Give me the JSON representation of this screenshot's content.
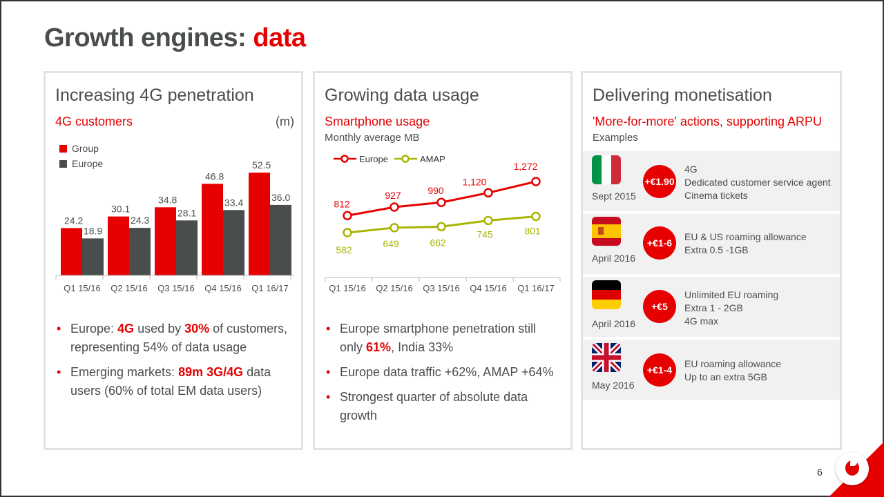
{
  "title": {
    "main": "Growth engines: ",
    "accent": "data"
  },
  "panel1": {
    "title": "Increasing 4G penetration",
    "subtitle": "4G customers",
    "unit": "(m)",
    "bullets": [
      {
        "a": "Europe: ",
        "b": "4G",
        "c": " used by ",
        "d": "30%",
        "e": " of customers, representing 54% of data usage"
      },
      {
        "a": "Emerging markets: ",
        "b": "89m 3G/4G",
        "c": " data users (60% of total EM data users)"
      }
    ]
  },
  "panel2": {
    "title": "Growing data usage",
    "subtitle": "Smartphone usage",
    "note": "Monthly average MB",
    "bullets": [
      {
        "a": "Europe smartphone penetration still only ",
        "b": "61%",
        "c": ", India 33%"
      },
      {
        "a": "Europe data traffic +62%, AMAP +64%"
      },
      {
        "a": "Strongest quarter of absolute data growth"
      }
    ]
  },
  "panel3": {
    "title": "Delivering monetisation",
    "subtitle": "'More-for-more' actions, supporting ARPU",
    "note": "Examples",
    "rows": [
      {
        "flag": "italy-flag-icon",
        "date": "Sept 2015",
        "badge": "+€1.90",
        "lines": [
          "4G",
          "Dedicated customer service agent",
          "Cinema tickets"
        ]
      },
      {
        "flag": "spain-flag-icon",
        "date": "April 2016",
        "badge": "+€1-6",
        "lines": [
          "EU & US roaming allowance",
          "Extra 0.5 -1GB"
        ]
      },
      {
        "flag": "germany-flag-icon",
        "date": "April 2016",
        "badge": "+€5",
        "lines": [
          "Unlimited EU roaming",
          "Extra 1 - 2GB",
          "4G max"
        ]
      },
      {
        "flag": "uk-flag-icon",
        "date": "May 2016",
        "badge": "+€1-4",
        "lines": [
          "EU roaming allowance",
          "Up to an extra 5GB"
        ]
      }
    ]
  },
  "page_number": "6",
  "colors": {
    "red": "#e60000",
    "grey": "#4a4d4e",
    "green": "#a8b400"
  },
  "chart_data": [
    {
      "type": "bar",
      "title": "4G customers",
      "ylabel": "(m)",
      "categories": [
        "Q1 15/16",
        "Q2 15/16",
        "Q3 15/16",
        "Q4 15/16",
        "Q1 16/17"
      ],
      "series": [
        {
          "name": "Group",
          "values": [
            24.2,
            30.1,
            34.8,
            46.8,
            52.5
          ],
          "labels": [
            "24.2",
            "30.1",
            "34.8",
            "46.8",
            "52.5"
          ],
          "color": "#e60000"
        },
        {
          "name": "Europe",
          "values": [
            18.9,
            24.3,
            28.1,
            33.4,
            36.0
          ],
          "labels": [
            "18.9",
            "24.3",
            "28.1",
            "33.4",
            "36.0"
          ],
          "color": "#4a4d4e"
        }
      ],
      "ylim": [
        0,
        55
      ],
      "legend": "top-left"
    },
    {
      "type": "line",
      "title": "Smartphone usage",
      "ylabel": "Monthly average MB",
      "categories": [
        "Q1 15/16",
        "Q2 15/16",
        "Q3 15/16",
        "Q4 15/16",
        "Q1 16/17"
      ],
      "series": [
        {
          "name": "Europe",
          "values": [
            812,
            927,
            990,
            1120,
            1272
          ],
          "labels": [
            "812",
            "927",
            "990",
            "1,120",
            "1,272"
          ],
          "color": "#e60000"
        },
        {
          "name": "AMAP",
          "values": [
            582,
            649,
            662,
            745,
            801
          ],
          "labels": [
            "582",
            "649",
            "662",
            "745",
            "801"
          ],
          "color": "#a8b400"
        }
      ],
      "legend": "top"
    }
  ]
}
